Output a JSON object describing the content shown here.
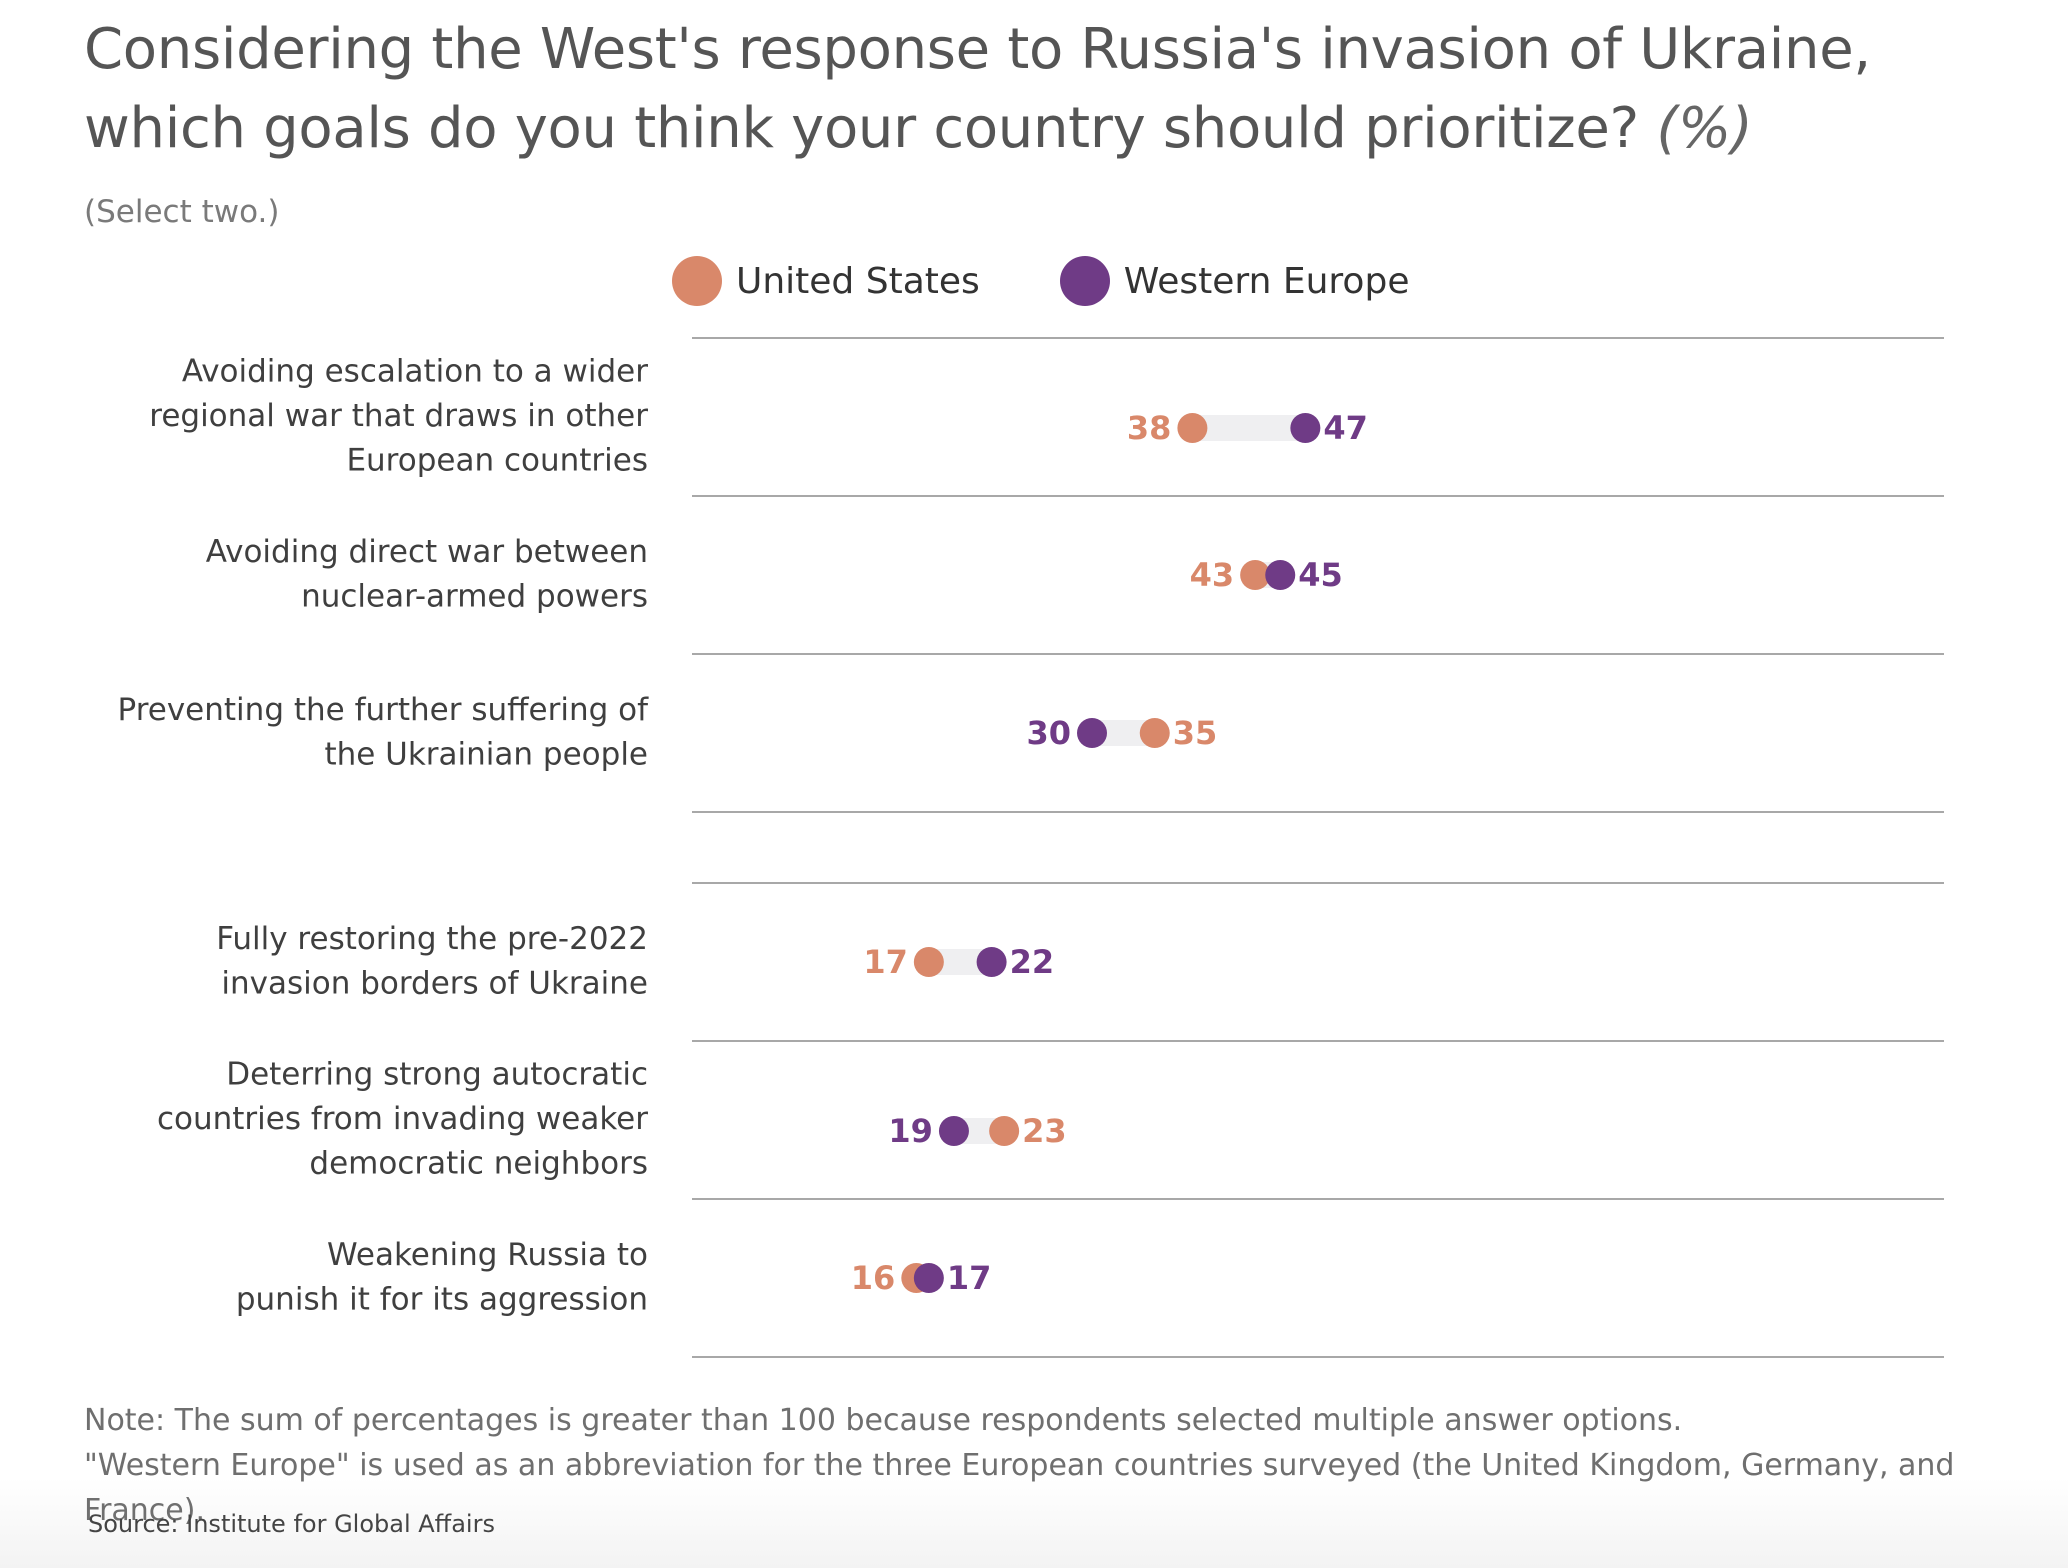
{
  "title": {
    "text": "Considering the West's response to Russia's invasion of Ukraine, which goals do you think your country should prioritize?",
    "unit": "(%)"
  },
  "subtitle": "(Select two.)",
  "legend": [
    {
      "name": "United States",
      "color": "#d9886a"
    },
    {
      "name": "Western Europe",
      "color": "#6f3b86"
    }
  ],
  "colors": {
    "us": "#d9886a",
    "we": "#6f3b86",
    "connector": "#efeff1",
    "rule": "#8c8c8c",
    "label": "#3f3f3f"
  },
  "chart_data": {
    "type": "dot-range",
    "unit": "%",
    "series": [
      {
        "name": "United States",
        "values": [
          38,
          43,
          35,
          17,
          23,
          16
        ]
      },
      {
        "name": "Western Europe",
        "values": [
          47,
          45,
          30,
          22,
          19,
          17
        ]
      }
    ],
    "categories": [
      "Avoiding escalation to a wider regional war that draws in other European countries",
      "Avoiding direct war between nuclear-armed powers",
      "Preventing the further suffering of the Ukrainian people",
      "Fully restoring the pre-2022 invasion borders of Ukraine",
      "Deterring strong autocratic countries from invading weaker democratic neighbors",
      "Weakening Russia to punish it for its aggression"
    ],
    "category_lines": [
      [
        "Avoiding escalation to a wider",
        "regional war that draws in other",
        "European countries"
      ],
      [
        "Avoiding direct war between",
        "nuclear-armed powers"
      ],
      [
        "Preventing the further suffering of",
        "the Ukrainian people"
      ],
      [
        "Fully restoring the pre-2022",
        "invasion borders of Ukraine"
      ],
      [
        "Deterring strong autocratic",
        "countries from invading weaker",
        "democratic neighbors"
      ],
      [
        "Weakening Russia to",
        "punish it for its aggression"
      ]
    ],
    "groups": [
      [
        0,
        1,
        2
      ],
      [
        3,
        4,
        5
      ]
    ],
    "xlim": [
      0,
      50
    ],
    "grid": false,
    "legend_position": "top"
  },
  "notes": [
    "Note: The sum of percentages is greater than 100 because respondents selected multiple answer options.",
    "\"Western Europe\" is used as an abbreviation for the three European countries surveyed (the United Kingdom, Germany, and France)."
  ],
  "source": "Source: Institute for Global Affairs"
}
